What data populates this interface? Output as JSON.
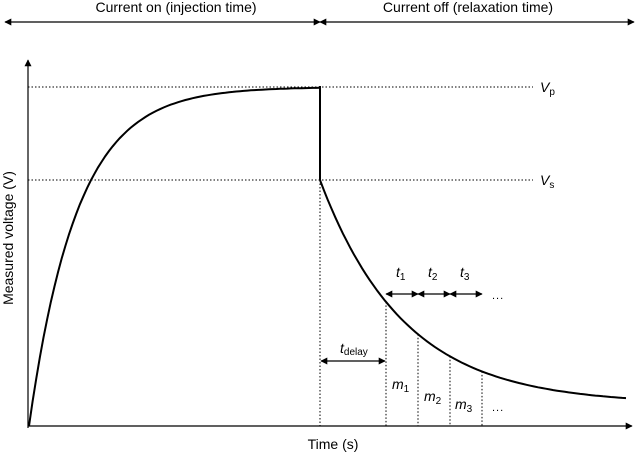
{
  "header": {
    "left": "Current on (injection time)",
    "right": "Current off (relaxation time)"
  },
  "axes": {
    "x_label": "Time (s)",
    "y_label": "Measured voltage (V)"
  },
  "levels": {
    "vp": {
      "symbol": "V",
      "sub": "p"
    },
    "vs": {
      "symbol": "V",
      "sub": "s"
    }
  },
  "annotations": {
    "t_delay": {
      "symbol": "t",
      "sub": "delay"
    },
    "t1": {
      "symbol": "t",
      "sub": "1"
    },
    "t2": {
      "symbol": "t",
      "sub": "2"
    },
    "t3": {
      "symbol": "t",
      "sub": "3"
    },
    "m1": {
      "symbol": "m",
      "sub": "1"
    },
    "m2": {
      "symbol": "m",
      "sub": "2"
    },
    "m3": {
      "symbol": "m",
      "sub": "3"
    },
    "ellipsis_top": "...",
    "ellipsis_bottom": "..."
  }
}
